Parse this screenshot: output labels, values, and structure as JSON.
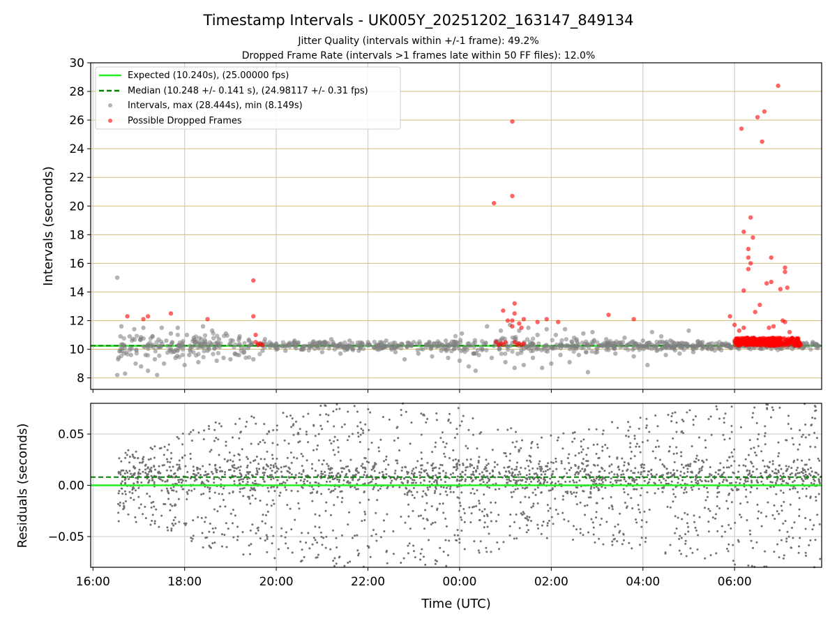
{
  "chart_data": [
    {
      "type": "scatter",
      "title": "Timestamp Intervals - UK005Y_20251202_163147_849134",
      "subtitle_lines": [
        "Jitter Quality (intervals within +/-1 frame): 49.2%",
        "Dropped Frame Rate (intervals >1 frames late within 50 FF files): 12.0%"
      ],
      "xlabel": "",
      "ylabel": "Intervals (seconds)",
      "x_units": "hours since 16:00 UTC",
      "xlim": [
        -0.05,
        15.9
      ],
      "ylim": [
        7.2,
        30
      ],
      "yticks": [
        8,
        10,
        12,
        14,
        16,
        18,
        20,
        22,
        24,
        26,
        28,
        30
      ],
      "ytick_labels": [
        "8",
        "10",
        "12",
        "14",
        "16",
        "18",
        "20",
        "22",
        "24",
        "26",
        "28",
        "30"
      ],
      "grid": "vertical gridlines gray, horizontal gridlines tan",
      "legend_position": "top-left",
      "legend": [
        {
          "label": "Expected (10.240s), (25.00000 fps)",
          "style": "solid-line",
          "color": "#22ee22"
        },
        {
          "label": "Median (10.248 +/- 0.141 s), (24.98117 +/- 0.31 fps)",
          "style": "dashed-line",
          "color": "#008000"
        },
        {
          "label": "Intervals, max (28.444s), min (8.149s)",
          "style": "marker",
          "color": "#808080"
        },
        {
          "label": "Possible Dropped Frames",
          "style": "marker",
          "color": "#ff0000"
        }
      ],
      "expected_interval": 10.24,
      "median_interval": 10.248,
      "series": [
        {
          "name": "Intervals",
          "color": "#808080",
          "points": [
            [
              0.53,
              15.0
            ],
            [
              0.53,
              8.2
            ],
            [
              0.55,
              9.3
            ],
            [
              0.6,
              10.9
            ],
            [
              0.62,
              11.6
            ],
            [
              0.7,
              8.3
            ],
            [
              0.8,
              10.9
            ],
            [
              0.83,
              9.6
            ],
            [
              0.9,
              11.4
            ],
            [
              0.93,
              9.0
            ],
            [
              1.05,
              8.8
            ],
            [
              1.1,
              11.5
            ],
            [
              1.15,
              9.6
            ],
            [
              1.2,
              8.5
            ],
            [
              1.3,
              10.9
            ],
            [
              1.35,
              9.3
            ],
            [
              1.4,
              8.2
            ],
            [
              1.5,
              11.5
            ],
            [
              1.55,
              9.0
            ],
            [
              1.6,
              10.6
            ],
            [
              1.7,
              11.1
            ],
            [
              1.8,
              9.4
            ],
            [
              1.85,
              11.5
            ],
            [
              2.0,
              8.9
            ],
            [
              2.05,
              11.0
            ],
            [
              2.1,
              9.6
            ],
            [
              2.2,
              10.8
            ],
            [
              2.3,
              9.1
            ],
            [
              2.4,
              11.6
            ],
            [
              2.5,
              9.9
            ],
            [
              2.6,
              11.3
            ],
            [
              2.7,
              9.2
            ],
            [
              2.75,
              10.7
            ],
            [
              2.85,
              9.4
            ],
            [
              2.9,
              11.1
            ],
            [
              3.0,
              9.3
            ],
            [
              3.05,
              10.6
            ],
            [
              3.1,
              9.7
            ],
            [
              3.2,
              10.9
            ],
            [
              3.3,
              9.8
            ],
            [
              3.4,
              10.6
            ],
            [
              3.5,
              9.3
            ],
            [
              3.6,
              10.4
            ],
            [
              3.7,
              9.9
            ],
            [
              4.0,
              10.4
            ],
            [
              4.2,
              9.9
            ],
            [
              4.4,
              10.6
            ],
            [
              4.6,
              10.0
            ],
            [
              4.8,
              10.5
            ],
            [
              5.0,
              9.8
            ],
            [
              5.2,
              10.7
            ],
            [
              5.4,
              9.7
            ],
            [
              5.6,
              10.6
            ],
            [
              5.8,
              9.9
            ],
            [
              6.0,
              10.5
            ],
            [
              6.2,
              10.0
            ],
            [
              6.4,
              10.6
            ],
            [
              6.6,
              9.8
            ],
            [
              6.8,
              9.3
            ],
            [
              7.0,
              10.5
            ],
            [
              7.1,
              9.7
            ],
            [
              7.3,
              10.3
            ],
            [
              7.4,
              9.5
            ],
            [
              7.5,
              10.4
            ],
            [
              7.6,
              9.9
            ],
            [
              7.7,
              10.6
            ],
            [
              7.75,
              9.4
            ],
            [
              7.9,
              10.3
            ],
            [
              8.0,
              9.2
            ],
            [
              8.05,
              11.1
            ],
            [
              8.2,
              8.8
            ],
            [
              8.3,
              9.7
            ],
            [
              8.35,
              8.5
            ],
            [
              8.5,
              10.0
            ],
            [
              8.6,
              11.6
            ],
            [
              8.7,
              9.4
            ],
            [
              8.9,
              11.3
            ],
            [
              9.0,
              9.1
            ],
            [
              9.1,
              11.7
            ],
            [
              9.2,
              8.7
            ],
            [
              9.3,
              11.3
            ],
            [
              9.4,
              8.9
            ],
            [
              9.5,
              11.5
            ],
            [
              9.6,
              9.4
            ],
            [
              9.7,
              11.0
            ],
            [
              9.8,
              8.7
            ],
            [
              9.9,
              11.4
            ],
            [
              10.0,
              9.0
            ],
            [
              10.1,
              11.0
            ],
            [
              10.2,
              9.6
            ],
            [
              10.3,
              11.4
            ],
            [
              10.4,
              9.1
            ],
            [
              10.5,
              10.8
            ],
            [
              10.6,
              9.6
            ],
            [
              10.7,
              11.1
            ],
            [
              10.8,
              8.4
            ],
            [
              10.9,
              11.2
            ],
            [
              11.0,
              9.8
            ],
            [
              11.2,
              10.7
            ],
            [
              11.4,
              9.7
            ],
            [
              11.6,
              10.8
            ],
            [
              11.8,
              9.5
            ],
            [
              12.0,
              10.6
            ],
            [
              12.1,
              8.9
            ],
            [
              12.2,
              11.2
            ],
            [
              12.3,
              9.9
            ],
            [
              12.4,
              10.9
            ],
            [
              12.5,
              9.6
            ],
            [
              12.6,
              10.6
            ],
            [
              12.8,
              9.7
            ],
            [
              13.0,
              11.3
            ],
            [
              13.1,
              9.8
            ],
            [
              13.3,
              10.5
            ],
            [
              13.5,
              10.0
            ],
            [
              13.6,
              10.4
            ],
            [
              14.0,
              10.3
            ],
            [
              14.3,
              10.1
            ],
            [
              14.6,
              10.4
            ],
            [
              14.9,
              10.1
            ],
            [
              15.2,
              10.4
            ],
            [
              15.5,
              10.1
            ],
            [
              15.8,
              10.3
            ]
          ]
        },
        {
          "name": "Possible Dropped Frames",
          "color": "#ff0000",
          "points": [
            [
              0.75,
              12.3
            ],
            [
              1.1,
              12.1
            ],
            [
              1.2,
              12.3
            ],
            [
              1.7,
              12.5
            ],
            [
              2.5,
              12.1
            ],
            [
              3.5,
              14.8
            ],
            [
              3.5,
              12.3
            ],
            [
              3.55,
              11.0
            ],
            [
              3.55,
              10.5
            ],
            [
              3.6,
              10.3
            ],
            [
              3.65,
              10.4
            ],
            [
              3.7,
              10.3
            ],
            [
              8.75,
              20.2
            ],
            [
              8.8,
              10.5
            ],
            [
              8.85,
              10.3
            ],
            [
              8.9,
              10.4
            ],
            [
              8.95,
              10.3
            ],
            [
              9.0,
              10.5
            ],
            [
              8.95,
              12.7
            ],
            [
              9.05,
              12.0
            ],
            [
              9.15,
              12.0
            ],
            [
              9.15,
              11.6
            ],
            [
              9.2,
              13.2
            ],
            [
              9.2,
              12.5
            ],
            [
              9.2,
              10.5
            ],
            [
              9.25,
              10.3
            ],
            [
              9.3,
              10.4
            ],
            [
              9.35,
              10.3
            ],
            [
              9.4,
              10.4
            ],
            [
              9.3,
              11.8
            ],
            [
              9.35,
              11.5
            ],
            [
              9.4,
              12.1
            ],
            [
              9.15,
              25.9
            ],
            [
              9.15,
              20.7
            ],
            [
              9.7,
              11.9
            ],
            [
              9.9,
              12.1
            ],
            [
              10.15,
              11.9
            ],
            [
              11.25,
              12.4
            ],
            [
              11.8,
              12.1
            ],
            [
              13.9,
              12.3
            ],
            [
              14.0,
              11.7
            ],
            [
              14.05,
              10.5
            ],
            [
              14.1,
              10.3
            ],
            [
              14.2,
              10.6
            ],
            [
              14.3,
              10.4
            ],
            [
              14.4,
              10.7
            ],
            [
              14.5,
              10.3
            ],
            [
              14.6,
              10.6
            ],
            [
              14.7,
              10.4
            ],
            [
              14.8,
              10.6
            ],
            [
              14.9,
              10.3
            ],
            [
              15.0,
              10.5
            ],
            [
              15.1,
              10.4
            ],
            [
              15.2,
              10.6
            ],
            [
              15.3,
              10.3
            ],
            [
              15.4,
              10.4
            ],
            [
              14.1,
              11.3
            ],
            [
              14.2,
              11.5
            ],
            [
              14.15,
              25.4
            ],
            [
              14.2,
              18.2
            ],
            [
              14.2,
              14.1
            ],
            [
              14.3,
              17.0
            ],
            [
              14.3,
              15.6
            ],
            [
              14.35,
              19.2
            ],
            [
              14.35,
              16.0
            ],
            [
              14.3,
              16.4
            ],
            [
              14.4,
              17.8
            ],
            [
              14.45,
              12.6
            ],
            [
              14.5,
              26.2
            ],
            [
              14.55,
              13.1
            ],
            [
              14.6,
              24.5
            ],
            [
              14.65,
              26.6
            ],
            [
              14.7,
              14.6
            ],
            [
              14.75,
              11.5
            ],
            [
              14.8,
              16.4
            ],
            [
              14.8,
              14.7
            ],
            [
              14.85,
              11.6
            ],
            [
              14.95,
              28.4
            ],
            [
              15.0,
              14.2
            ],
            [
              15.1,
              15.7
            ],
            [
              15.1,
              15.4
            ],
            [
              15.15,
              14.3
            ],
            [
              15.1,
              11.9
            ],
            [
              15.2,
              11.2
            ],
            [
              15.05,
              12.0
            ]
          ]
        }
      ]
    },
    {
      "type": "scatter",
      "title": "",
      "xlabel": "Time (UTC)",
      "ylabel": "Residuals (seconds)",
      "x_units": "hours since 16:00 UTC",
      "xlim": [
        -0.05,
        15.9
      ],
      "ylim": [
        -0.08,
        0.08
      ],
      "yticks": [
        0.05,
        0.0,
        -0.05
      ],
      "ytick_labels": [
        "0.05",
        "0.00",
        "−0.05"
      ],
      "xticks": [
        0,
        2,
        4,
        6,
        8,
        10,
        12,
        14
      ],
      "xtick_labels": [
        "16:00",
        "18:00",
        "20:00",
        "22:00",
        "00:00",
        "02:00",
        "04:00",
        "06:00"
      ],
      "grid": "on, light gray",
      "expected_residual": 0.0,
      "median_residual": 0.008,
      "series": [
        {
          "name": "Residuals",
          "color": "#707070",
          "description": "dense scatter of residuals, tight near 0.00–0.02 early and mid-series, spreading across the full range elsewhere",
          "spread_profile": [
            [
              0.5,
              0.025
            ],
            [
              1.5,
              0.03
            ],
            [
              2.5,
              0.045
            ],
            [
              3.5,
              0.05
            ],
            [
              4.5,
              0.055
            ],
            [
              5.5,
              0.06
            ],
            [
              6.5,
              0.065
            ],
            [
              7.5,
              0.06
            ],
            [
              8.5,
              0.05
            ],
            [
              9.5,
              0.035
            ],
            [
              10.5,
              0.04
            ],
            [
              11.5,
              0.045
            ],
            [
              12.5,
              0.05
            ],
            [
              13.5,
              0.055
            ],
            [
              14.5,
              0.06
            ],
            [
              15.5,
              0.065
            ]
          ]
        }
      ]
    }
  ]
}
